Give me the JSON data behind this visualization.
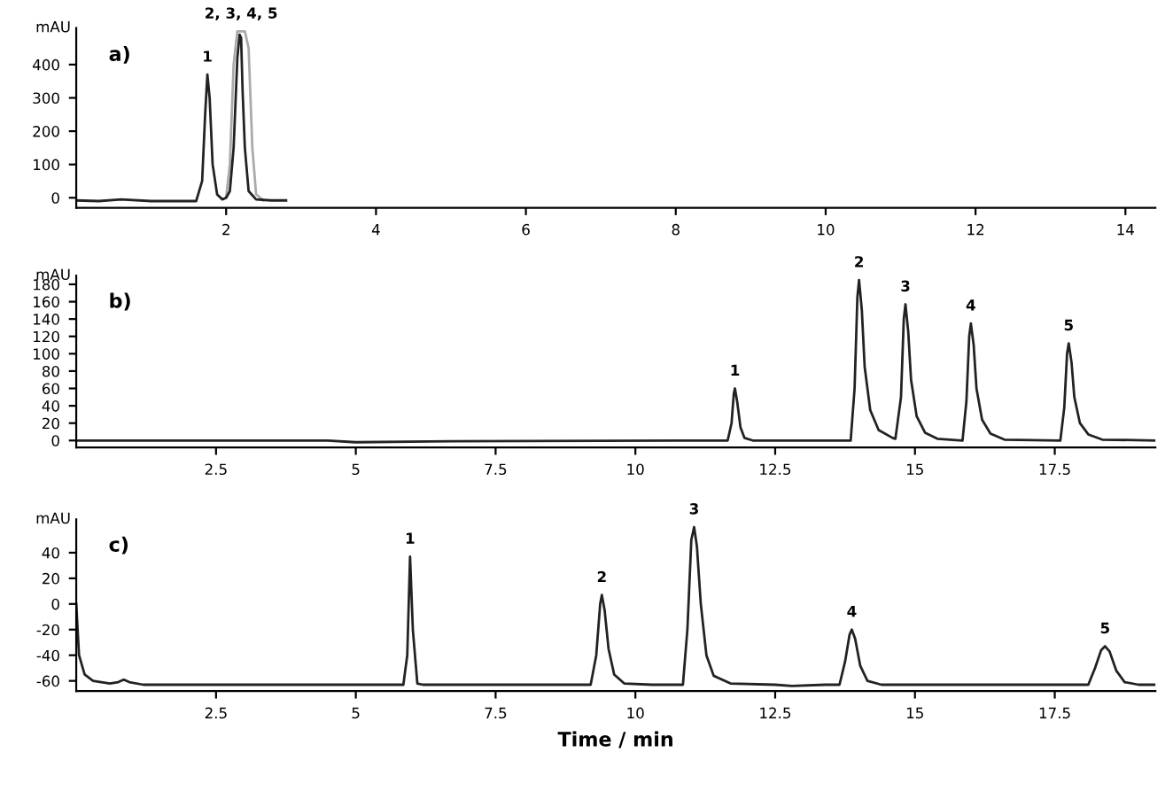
{
  "chart_data": [
    {
      "type": "line",
      "title": "a)",
      "ylabel": "mAU",
      "xlim": [
        0,
        14.4
      ],
      "xticks": [
        2,
        4,
        6,
        8,
        10,
        12,
        14
      ],
      "ylim": [
        -30,
        510
      ],
      "yticks": [
        0,
        100,
        200,
        300,
        400
      ],
      "series": [
        {
          "color": "#aaaaaa",
          "x": [
            2.0,
            2.05,
            2.1,
            2.15,
            2.2,
            2.25,
            2.3,
            2.35,
            2.4,
            2.5
          ],
          "values": [
            0,
            100,
            400,
            500,
            500,
            500,
            450,
            150,
            10,
            -8
          ]
        },
        {
          "color": "#222222",
          "x": [
            0,
            0.3,
            0.6,
            1.0,
            1.4,
            1.6,
            1.68,
            1.72,
            1.75,
            1.78,
            1.82,
            1.88,
            1.95,
            2.0,
            2.05,
            2.1,
            2.15,
            2.18,
            2.2,
            2.22,
            2.25,
            2.3,
            2.4,
            2.6,
            2.8
          ],
          "values": [
            -8,
            -10,
            -5,
            -10,
            -10,
            -10,
            50,
            250,
            370,
            300,
            100,
            10,
            -5,
            0,
            20,
            150,
            420,
            490,
            480,
            320,
            150,
            20,
            -5,
            -8,
            -8
          ]
        }
      ],
      "annotations": [
        {
          "text": "1",
          "x": 1.75,
          "y": 370
        },
        {
          "text": "2, 3, 4, 5",
          "x": 2.2,
          "y": 500
        }
      ]
    },
    {
      "type": "line",
      "title": "b)",
      "ylabel": "mAU",
      "xlim": [
        0,
        19.3
      ],
      "xticks": [
        2.5,
        5,
        7.5,
        10,
        12.5,
        15,
        17.5
      ],
      "ylim": [
        -8,
        190
      ],
      "yticks": [
        0,
        20,
        40,
        60,
        80,
        100,
        120,
        140,
        160,
        180
      ],
      "series": [
        {
          "color": "#222222",
          "x": [
            0,
            4.5,
            5,
            6.3,
            11.6,
            11.65,
            11.72,
            11.76,
            11.78,
            11.82,
            11.88,
            11.95,
            12.1,
            13.85,
            13.92,
            13.97,
            14.0,
            14.05,
            14.1,
            14.2,
            14.35,
            14.6,
            14.65,
            14.75,
            14.8,
            14.83,
            14.88,
            14.93,
            15.03,
            15.18,
            15.4,
            15.85,
            15.92,
            15.97,
            16.0,
            16.05,
            16.1,
            16.2,
            16.35,
            16.6,
            17.6,
            17.67,
            17.72,
            17.75,
            17.8,
            17.85,
            17.95,
            18.1,
            18.35,
            19.3
          ],
          "values": [
            0,
            0,
            -2,
            -1,
            0,
            0,
            20,
            54,
            60,
            45,
            15,
            3,
            0,
            0,
            60,
            165,
            185,
            150,
            85,
            35,
            12,
            3,
            2,
            50,
            140,
            157,
            125,
            70,
            28,
            9,
            2,
            0,
            45,
            120,
            135,
            110,
            60,
            24,
            8,
            1,
            0,
            38,
            100,
            112,
            90,
            50,
            20,
            7,
            1,
            0
          ]
        }
      ],
      "annotations": [
        {
          "text": "1",
          "x": 11.78,
          "y": 60
        },
        {
          "text": "2",
          "x": 14.0,
          "y": 185
        },
        {
          "text": "3",
          "x": 14.83,
          "y": 157
        },
        {
          "text": "4",
          "x": 16.0,
          "y": 135
        },
        {
          "text": "5",
          "x": 17.75,
          "y": 112
        }
      ]
    },
    {
      "type": "line",
      "title": "c)",
      "ylabel": "mAU",
      "xlabel": "Time / min",
      "xlim": [
        0,
        19.3
      ],
      "xticks": [
        2.5,
        5,
        7.5,
        10,
        12.5,
        15,
        17.5
      ],
      "ylim": [
        -68,
        66
      ],
      "yticks": [
        -60,
        -40,
        -20,
        0,
        20,
        40
      ],
      "series": [
        {
          "color": "#222222",
          "x": [
            0,
            0.05,
            0.15,
            0.3,
            0.6,
            0.75,
            0.85,
            0.95,
            1.2,
            5.85,
            5.92,
            5.97,
            6.02,
            6.1,
            6.2,
            9.2,
            9.3,
            9.37,
            9.4,
            9.45,
            9.52,
            9.62,
            9.8,
            10.3,
            10.85,
            10.93,
            11.0,
            11.05,
            11.1,
            11.17,
            11.27,
            11.4,
            11.7,
            12.5,
            12.8,
            13.4,
            13.65,
            13.75,
            13.83,
            13.87,
            13.93,
            14.02,
            14.15,
            14.4,
            18.1,
            18.22,
            18.33,
            18.4,
            18.48,
            18.6,
            18.75,
            19.0,
            19.3
          ],
          "values": [
            0,
            -40,
            -55,
            -60,
            -62,
            -61,
            -59,
            -61,
            -63,
            -63,
            -40,
            37,
            -20,
            -62,
            -63,
            -63,
            -40,
            0,
            7,
            -5,
            -35,
            -55,
            -62,
            -63,
            -63,
            -20,
            50,
            60,
            45,
            0,
            -40,
            -56,
            -62,
            -63,
            -64,
            -63,
            -63,
            -45,
            -24,
            -20,
            -27,
            -48,
            -60,
            -63,
            -63,
            -50,
            -36,
            -33,
            -37,
            -52,
            -61,
            -63,
            -63
          ]
        }
      ],
      "annotations": [
        {
          "text": "1",
          "x": 5.97,
          "y": 37
        },
        {
          "text": "2",
          "x": 9.4,
          "y": 7
        },
        {
          "text": "3",
          "x": 11.05,
          "y": 60
        },
        {
          "text": "4",
          "x": 13.87,
          "y": -20
        },
        {
          "text": "5",
          "x": 18.4,
          "y": -33
        }
      ]
    }
  ]
}
